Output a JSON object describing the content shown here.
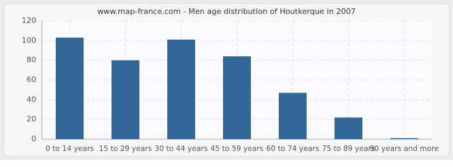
{
  "chart_data": {
    "type": "bar",
    "title": "www.map-france.com - Men age distribution of Houtkerque in 2007",
    "categories": [
      "0 to 14 years",
      "15 to 29 years",
      "30 to 44 years",
      "45 to 59 years",
      "60 to 74 years",
      "75 to 89 years",
      "90 years and more"
    ],
    "values": [
      103,
      80,
      101,
      84,
      47,
      22,
      1
    ],
    "color": "#336699",
    "ylim": [
      0,
      120
    ],
    "yticks": [
      0,
      20,
      40,
      60,
      80,
      100,
      120
    ],
    "grid": true
  }
}
